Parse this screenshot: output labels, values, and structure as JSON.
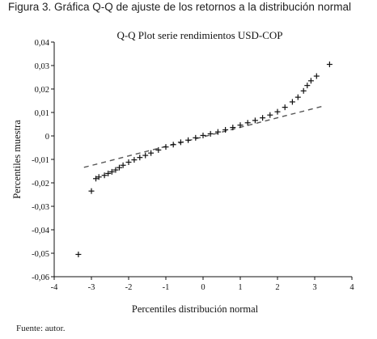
{
  "figure_caption": "Figura 3. Gráfica Q-Q de ajuste de los retornos a la distribución normal",
  "source_note": "Fuente: autor.",
  "chart_data": {
    "type": "scatter",
    "title": "Q-Q Plot serie rendimientos USD-COP",
    "xlabel": "Percentiles distribución normal",
    "ylabel": "Percentiles muestra",
    "xlim": [
      -4,
      4
    ],
    "ylim": [
      -0.06,
      0.04
    ],
    "x_ticks": [
      -4,
      -3,
      -2,
      -1,
      0,
      1,
      2,
      3,
      4
    ],
    "x_tick_labels": [
      "-4",
      "-3",
      "-2",
      "-1",
      "0",
      "1",
      "2",
      "3",
      "4"
    ],
    "y_ticks": [
      -0.06,
      -0.05,
      -0.04,
      -0.03,
      -0.02,
      -0.01,
      0,
      0.01,
      0.02,
      0.03,
      0.04
    ],
    "y_tick_labels": [
      "-0,06",
      "-0,05",
      "-0,04",
      "-0,03",
      "-0,02",
      "-0,01",
      "0",
      "0,01",
      "0,02",
      "0,03",
      "0,04"
    ],
    "grid": false,
    "reference_line": {
      "style": "dashed",
      "x": [
        -3.2,
        3.2
      ],
      "y": [
        -0.0134,
        0.0126
      ]
    },
    "series": [
      {
        "marker": "plus",
        "points": [
          [
            -3.35,
            -0.0505
          ],
          [
            -3.0,
            -0.0235
          ],
          [
            -2.88,
            -0.0182
          ],
          [
            -2.8,
            -0.0175
          ],
          [
            -2.65,
            -0.0168
          ],
          [
            -2.55,
            -0.016
          ],
          [
            -2.45,
            -0.0153
          ],
          [
            -2.35,
            -0.0145
          ],
          [
            -2.25,
            -0.0135
          ],
          [
            -2.15,
            -0.0125
          ],
          [
            -2.0,
            -0.0112
          ],
          [
            -1.85,
            -0.0102
          ],
          [
            -1.7,
            -0.0092
          ],
          [
            -1.55,
            -0.0083
          ],
          [
            -1.4,
            -0.0073
          ],
          [
            -1.2,
            -0.006
          ],
          [
            -1.0,
            -0.0047
          ],
          [
            -0.8,
            -0.0037
          ],
          [
            -0.6,
            -0.0027
          ],
          [
            -0.4,
            -0.0018
          ],
          [
            -0.2,
            -0.0008
          ],
          [
            0.0,
            0.0002
          ],
          [
            0.2,
            0.0009
          ],
          [
            0.4,
            0.0017
          ],
          [
            0.6,
            0.0026
          ],
          [
            0.8,
            0.0036
          ],
          [
            1.0,
            0.0046
          ],
          [
            1.2,
            0.0056
          ],
          [
            1.4,
            0.0066
          ],
          [
            1.6,
            0.0077
          ],
          [
            1.8,
            0.0089
          ],
          [
            2.0,
            0.0103
          ],
          [
            2.2,
            0.0122
          ],
          [
            2.4,
            0.0145
          ],
          [
            2.55,
            0.0165
          ],
          [
            2.7,
            0.0192
          ],
          [
            2.8,
            0.0215
          ],
          [
            2.9,
            0.0235
          ],
          [
            3.05,
            0.0255
          ],
          [
            3.4,
            0.0305
          ]
        ]
      }
    ]
  }
}
